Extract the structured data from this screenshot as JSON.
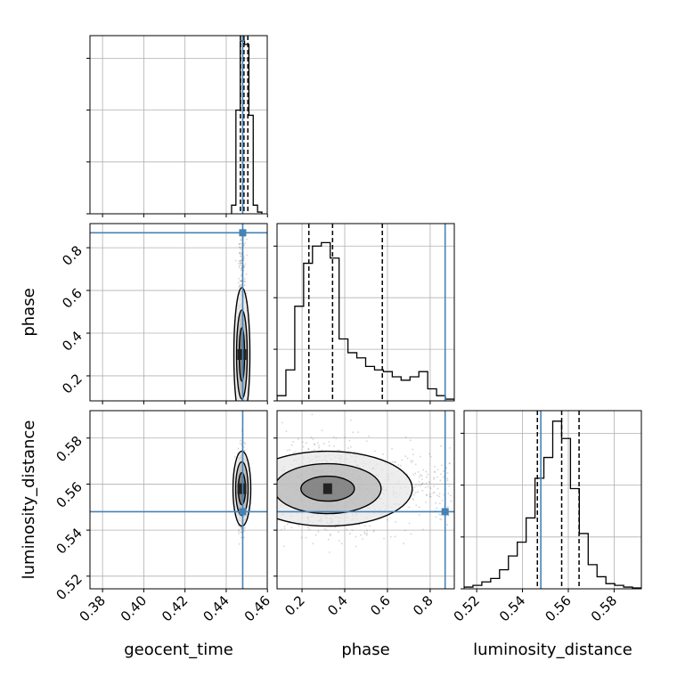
{
  "chart_data": {
    "type": "corner",
    "parameters": [
      "geocent_time",
      "phase",
      "luminosity_distance"
    ],
    "truths": {
      "geocent_time": 0.448,
      "phase": 0.87,
      "luminosity_distance": 0.548
    },
    "colors": {
      "truth": "#4682b4",
      "hist": "#000000",
      "contour": "#000000",
      "grid": "#b0b0b0"
    },
    "axes": {
      "geocent_time": {
        "range": [
          0.3739,
          0.4599
        ],
        "ticks": [
          0.38,
          0.4,
          0.42,
          0.44,
          0.46
        ],
        "tick_labels": [
          "0.38",
          "0.40",
          "0.42",
          "0.44",
          "0.46"
        ]
      },
      "phase": {
        "range": [
          0.083,
          0.913
        ],
        "ticks": [
          0.2,
          0.4,
          0.6,
          0.8
        ],
        "tick_labels": [
          "0.2",
          "0.4",
          "0.6",
          "0.8"
        ]
      },
      "luminosity_distance": {
        "range": [
          0.5145,
          0.5919
        ],
        "ticks": [
          0.52,
          0.54,
          0.56,
          0.58
        ],
        "tick_labels": [
          "0.52",
          "0.54",
          "0.56",
          "0.58"
        ]
      }
    },
    "histograms": {
      "geocent_time": {
        "bin_edges": [
          0.4426,
          0.4447,
          0.4468,
          0.4489,
          0.451,
          0.4531,
          0.4552,
          0.4573
        ],
        "counts": [
          0.05,
          0.6,
          1.0,
          0.98,
          0.57,
          0.05,
          0.01
        ],
        "quantiles": [
          0.4469,
          0.4486,
          0.4505
        ]
      },
      "phase": {
        "bin_edges": [
          0.083,
          0.1245,
          0.166,
          0.2075,
          0.249,
          0.2905,
          0.332,
          0.3735,
          0.415,
          0.4565,
          0.498,
          0.5395,
          0.581,
          0.6225,
          0.664,
          0.7055,
          0.747,
          0.7885,
          0.83,
          0.8715,
          0.913
        ],
        "counts": [
          0.03,
          0.18,
          0.55,
          0.8,
          0.9,
          0.92,
          0.83,
          0.36,
          0.28,
          0.25,
          0.2,
          0.18,
          0.17,
          0.14,
          0.12,
          0.14,
          0.17,
          0.07,
          0.03,
          0.01
        ],
        "quantiles": [
          0.232,
          0.343,
          0.576
        ]
      },
      "luminosity_distance": {
        "bin_edges": [
          0.5145,
          0.51837,
          0.52224,
          0.52611,
          0.52998,
          0.53385,
          0.53772,
          0.54159,
          0.54546,
          0.54933,
          0.5532,
          0.55707,
          0.56094,
          0.56481,
          0.56868,
          0.57255,
          0.57642,
          0.58029,
          0.58416,
          0.58803,
          0.5919
        ],
        "counts": [
          0.01,
          0.02,
          0.04,
          0.06,
          0.11,
          0.19,
          0.27,
          0.41,
          0.64,
          0.76,
          0.97,
          0.87,
          0.58,
          0.32,
          0.14,
          0.07,
          0.03,
          0.02,
          0.01,
          0.005
        ],
        "quantiles": [
          0.5465,
          0.5571,
          0.5647
        ]
      }
    },
    "density_peaks": {
      "phase_vs_geocent_time": {
        "x": 0.4476,
        "y": 0.3
      },
      "luminosity_distance_vs_geocent_time": {
        "x": 0.4476,
        "y": 0.558
      },
      "luminosity_distance_vs_phase": {
        "x": 0.32,
        "y": 0.558
      }
    },
    "grid": true
  }
}
